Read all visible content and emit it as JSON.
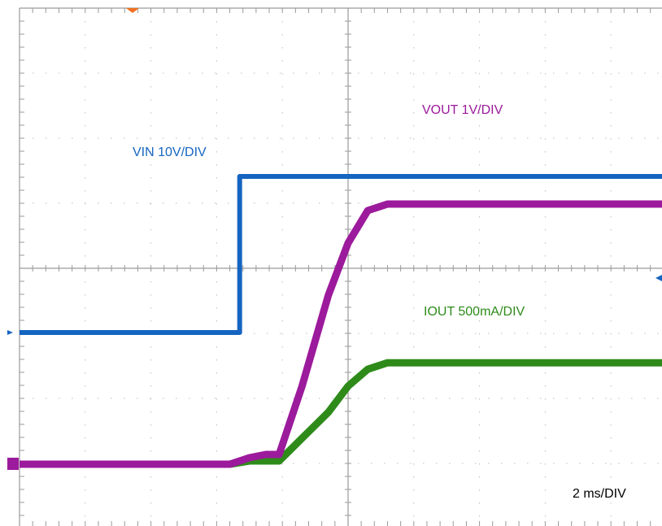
{
  "chart_data": {
    "type": "line",
    "title": "",
    "x_unit": "ms",
    "x_range": [
      -10,
      10
    ],
    "divisions": {
      "x": 10,
      "y": 8
    },
    "timebase_label": "2 ms/DIV",
    "series": [
      {
        "name": "VIN 10V/DIV",
        "color": "#1565c0",
        "unit": "V",
        "points": [
          [
            -10,
            0
          ],
          [
            -3.3,
            0
          ],
          [
            -3.3,
            24
          ],
          [
            10,
            24
          ]
        ]
      },
      {
        "name": "VOUT 1V/DIV",
        "color": "#9c1a9c",
        "unit": "V",
        "points": [
          [
            -10,
            0
          ],
          [
            -3.6,
            0
          ],
          [
            -3.0,
            0.1
          ],
          [
            -2.5,
            0.15
          ],
          [
            -2.1,
            0.15
          ],
          [
            -1.4,
            1.2
          ],
          [
            -0.6,
            2.6
          ],
          [
            0,
            3.4
          ],
          [
            0.6,
            3.9
          ],
          [
            1.2,
            4.0
          ],
          [
            10,
            4.0
          ]
        ]
      },
      {
        "name": "IOUT 500mA/DIV",
        "color": "#2e8b1a",
        "unit": "mA",
        "points": [
          [
            -10,
            0
          ],
          [
            -3.6,
            0
          ],
          [
            -3.0,
            25
          ],
          [
            -2.1,
            25
          ],
          [
            -1.4,
            200
          ],
          [
            -0.6,
            400
          ],
          [
            0,
            600
          ],
          [
            0.6,
            730
          ],
          [
            1.2,
            780
          ],
          [
            10,
            780
          ]
        ]
      }
    ]
  }
}
